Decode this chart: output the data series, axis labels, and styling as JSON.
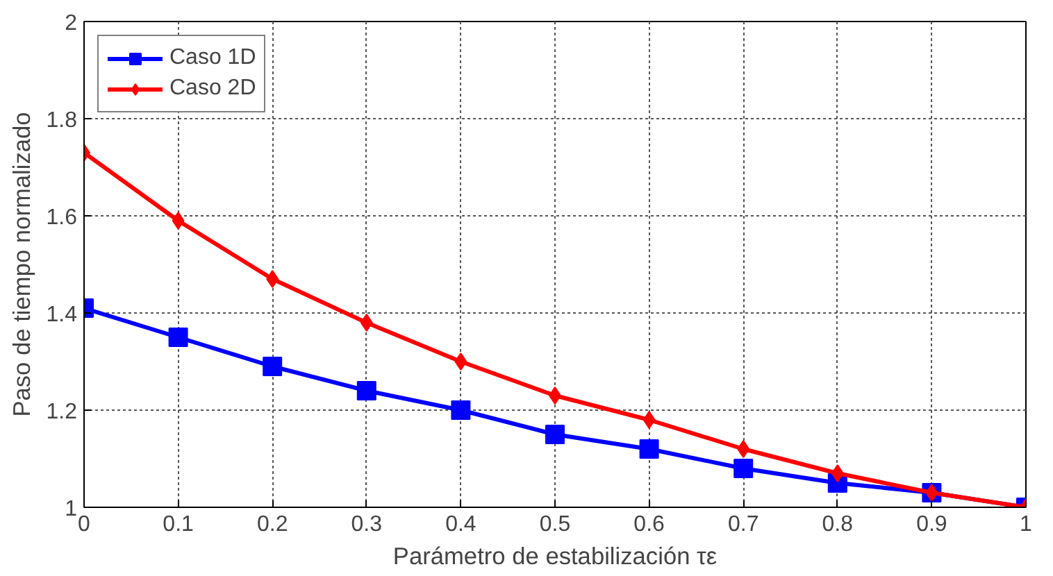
{
  "chart_data": {
    "type": "line",
    "xlabel": "Parámetro de estabilización τε",
    "ylabel": "Paso de tiempo normalizado",
    "x": [
      0,
      0.1,
      0.2,
      0.3,
      0.4,
      0.5,
      0.6,
      0.7,
      0.8,
      0.9,
      1
    ],
    "series": [
      {
        "name": "Caso 1D",
        "color": "#0000ff",
        "marker": "square",
        "values": [
          1.41,
          1.35,
          1.29,
          1.24,
          1.2,
          1.15,
          1.12,
          1.08,
          1.05,
          1.03,
          1.0
        ]
      },
      {
        "name": "Caso 2D",
        "color": "#ff0000",
        "marker": "diamond",
        "values": [
          1.73,
          1.59,
          1.47,
          1.38,
          1.3,
          1.23,
          1.18,
          1.12,
          1.07,
          1.03,
          1.0
        ]
      }
    ],
    "xlim": [
      0,
      1
    ],
    "ylim": [
      1,
      2
    ],
    "xticks": [
      0,
      0.1,
      0.2,
      0.3,
      0.4,
      0.5,
      0.6,
      0.7,
      0.8,
      0.9,
      1
    ],
    "yticks": [
      1,
      1.2,
      1.4,
      1.6,
      1.8,
      2
    ],
    "grid": true,
    "legend": "top left",
    "line_style": "solid"
  }
}
